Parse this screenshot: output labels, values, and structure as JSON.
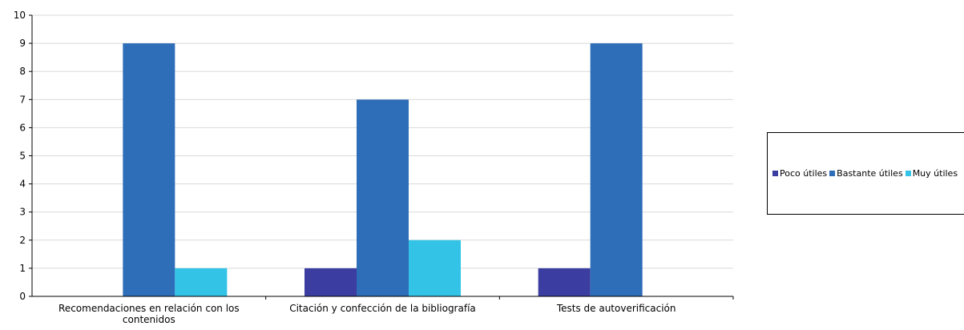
{
  "chart_data": {
    "type": "bar",
    "categories": [
      [
        "Recomendaciones en relación con los",
        "contenidos"
      ],
      [
        "Citación y confección de la bibliografía"
      ],
      [
        "Tests de autoverificación"
      ]
    ],
    "series": [
      {
        "name": "Poco útiles",
        "color": "#3b3ea0",
        "values": [
          0,
          1,
          1
        ]
      },
      {
        "name": "Bastante útiles",
        "color": "#2e6db8",
        "values": [
          9,
          7,
          9
        ]
      },
      {
        "name": "Muy útiles",
        "color": "#33c3e6",
        "values": [
          1,
          2,
          0
        ]
      }
    ],
    "y_ticks": [
      "0",
      "1",
      "2",
      "3",
      "4",
      "5",
      "6",
      "7",
      "8",
      "9",
      "10"
    ],
    "ylim": [
      0,
      10
    ],
    "grid": true,
    "legend_position": "right"
  },
  "legend": {
    "items": [
      "Poco útiles",
      "Bastante útiles",
      "Muy útiles"
    ]
  }
}
